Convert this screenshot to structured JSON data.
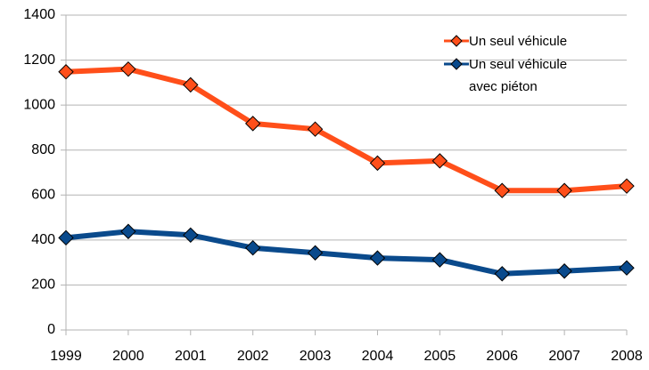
{
  "chart_data": {
    "type": "line",
    "categories": [
      "1999",
      "2000",
      "2001",
      "2002",
      "2003",
      "2004",
      "2005",
      "2006",
      "2007",
      "2008"
    ],
    "series": [
      {
        "name": "Un seul véhicule",
        "color": "#ff4f1a",
        "values": [
          1148,
          1160,
          1090,
          918,
          893,
          742,
          752,
          620,
          620,
          640
        ]
      },
      {
        "name": "Un seul véhicule avec piéton",
        "color": "#0a4a8c",
        "values": [
          410,
          438,
          422,
          365,
          343,
          320,
          312,
          250,
          262,
          276
        ]
      }
    ],
    "ylim": [
      0,
      1400
    ],
    "yticks": [
      0,
      200,
      400,
      600,
      800,
      1000,
      1200,
      1400
    ],
    "grid": true,
    "legend": "top-right"
  }
}
